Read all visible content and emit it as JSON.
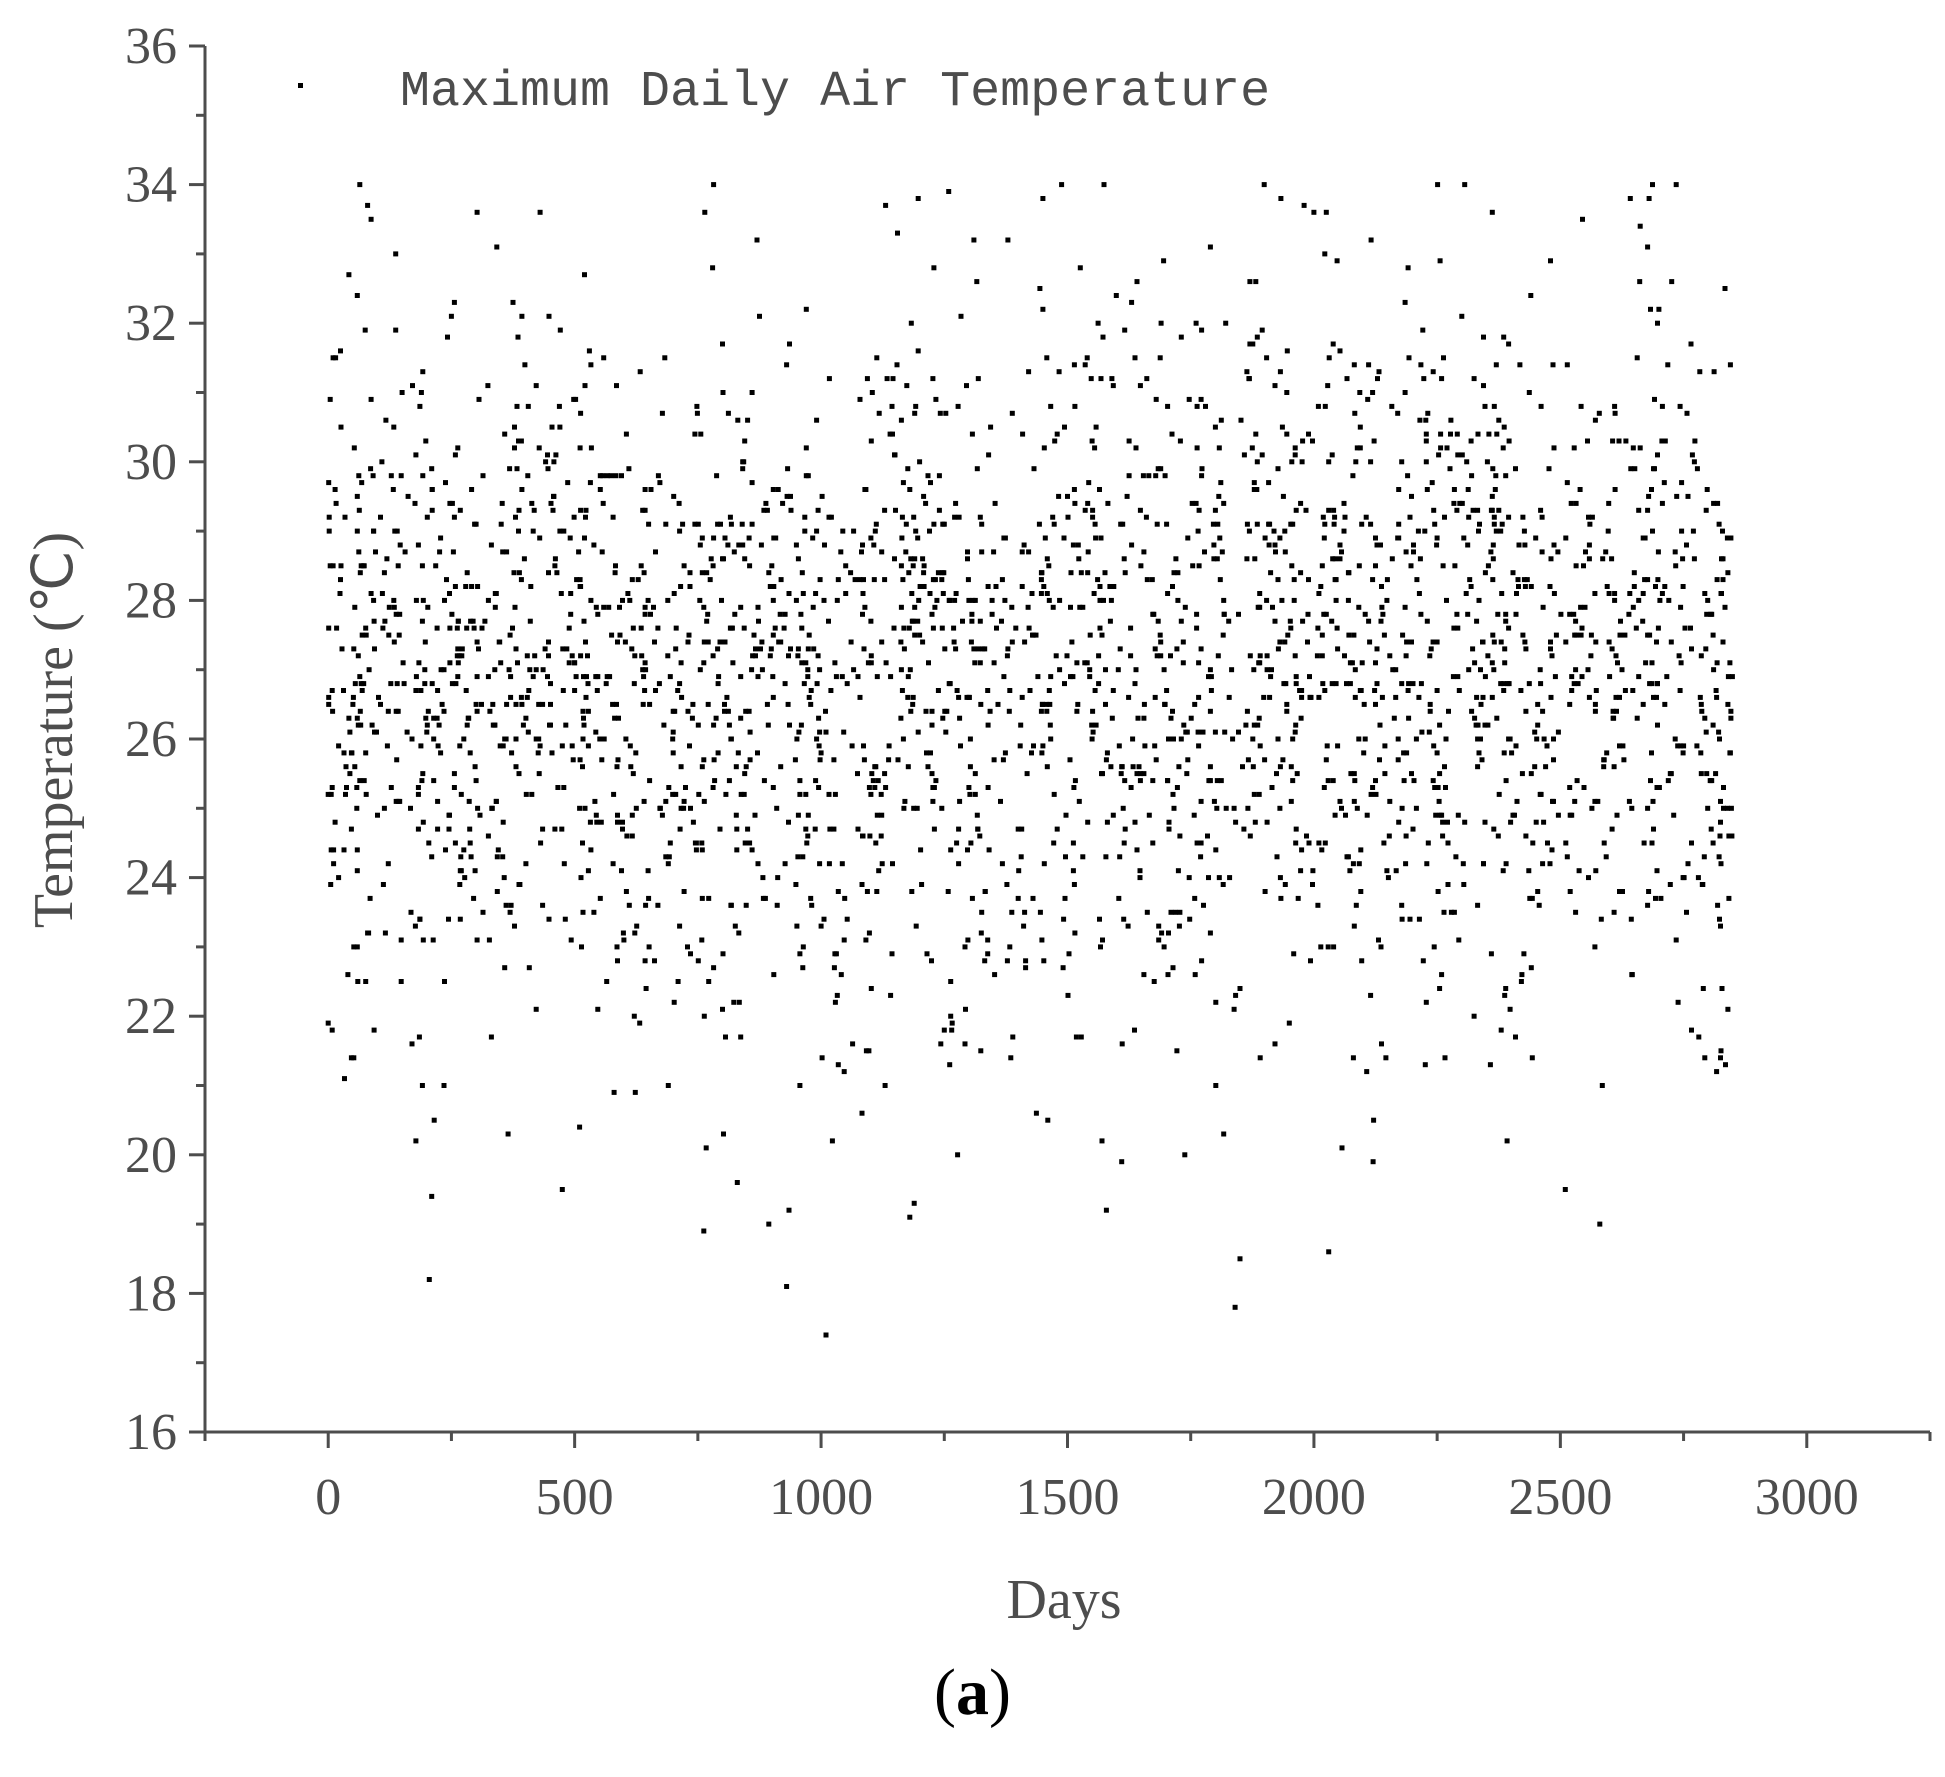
{
  "chart_data": {
    "type": "scatter",
    "title": "",
    "xlabel": "Days",
    "ylabel": "Temperature (℃)",
    "xlim": [
      -250,
      3250
    ],
    "ylim": [
      16,
      36
    ],
    "xticks": [
      "0",
      "500",
      "1000",
      "1500",
      "2000",
      "2500",
      "3000"
    ],
    "yticks": [
      "16",
      "18",
      "20",
      "22",
      "24",
      "26",
      "28",
      "30",
      "32",
      "34",
      "36"
    ],
    "legend": {
      "label": "Maximum Daily Air Temperature",
      "position": "top-left"
    },
    "grid": false,
    "marker_color": "#000000",
    "axis_color": "#4d4d4d",
    "n_points": 2850,
    "series": [
      {
        "name": "Maximum Daily Air Temperature",
        "points_sample": [
          [
            0,
            21.9
          ],
          [
            5,
            23.9
          ],
          [
            10,
            28.5
          ],
          [
            40,
            22.6
          ],
          [
            60,
            22.5
          ],
          [
            75,
            31.9
          ],
          [
            80,
            33.7
          ],
          [
            205,
            18.2
          ],
          [
            210,
            19.4
          ],
          [
            215,
            20.5
          ],
          [
            250,
            32.1
          ],
          [
            365,
            20.3
          ],
          [
            430,
            33.6
          ],
          [
            475,
            19.5
          ],
          [
            520,
            32.7
          ],
          [
            580,
            20.9
          ],
          [
            800,
            31.7
          ],
          [
            830,
            19.6
          ],
          [
            930,
            18.1
          ],
          [
            935,
            19.2
          ],
          [
            970,
            32.2
          ],
          [
            1010,
            17.4
          ],
          [
            1155,
            33.3
          ],
          [
            1180,
            19.1
          ],
          [
            1310,
            33.2
          ],
          [
            1450,
            33.8
          ],
          [
            1460,
            20.5
          ],
          [
            1570,
            20.2
          ],
          [
            1630,
            32.3
          ],
          [
            1790,
            33.1
          ],
          [
            1840,
            17.8
          ],
          [
            1850,
            18.5
          ],
          [
            2000,
            33.6
          ],
          [
            2025,
            33.6
          ],
          [
            2030,
            18.6
          ],
          [
            2120,
            19.9
          ],
          [
            2440,
            32.4
          ],
          [
            2480,
            32.9
          ],
          [
            2510,
            19.5
          ],
          [
            2545,
            33.5
          ],
          [
            2580,
            19.0
          ],
          [
            2735,
            34.0
          ],
          [
            2840,
            22.1
          ],
          [
            2845,
            31.4
          ]
        ]
      }
    ]
  },
  "caption": {
    "open": "(",
    "letter": "a",
    "close": ")"
  }
}
